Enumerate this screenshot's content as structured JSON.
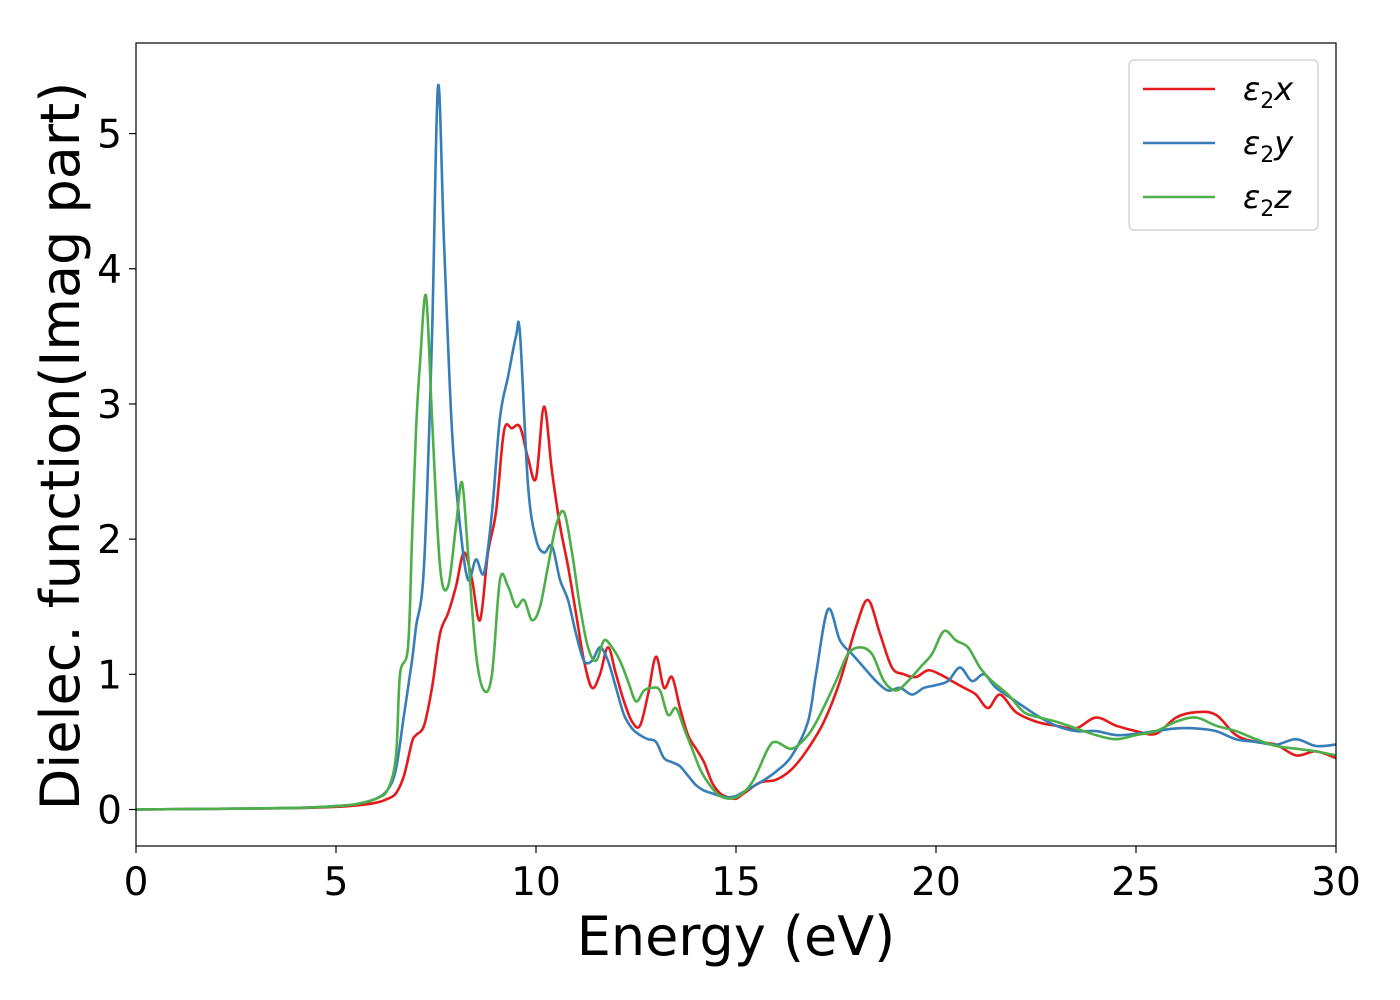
{
  "chart_data": {
    "type": "line",
    "xlabel": "Energy (eV)",
    "ylabel": "Dielec. function(Imag part)",
    "xlim": [
      0,
      30
    ],
    "ylim": [
      -0.27,
      5.67
    ],
    "xticks": [
      0,
      5,
      10,
      15,
      20,
      25,
      30
    ],
    "yticks": [
      0,
      1,
      2,
      3,
      4,
      5
    ],
    "grid": false,
    "legend_position": "top-right",
    "series": [
      {
        "name": "ε2x",
        "legend": {
          "base": "ε",
          "sub": "2",
          "tail": "x"
        },
        "color": "#e41a1c",
        "x": [
          0,
          2,
          4,
          5,
          5.5,
          6,
          6.3,
          6.5,
          6.7,
          6.9,
          7.0,
          7.2,
          7.4,
          7.6,
          7.8,
          8.0,
          8.2,
          8.4,
          8.6,
          8.8,
          9.0,
          9.2,
          9.4,
          9.6,
          9.8,
          10.0,
          10.2,
          10.4,
          10.6,
          10.8,
          11.0,
          11.2,
          11.4,
          11.6,
          11.8,
          12.0,
          12.2,
          12.4,
          12.6,
          12.8,
          13.0,
          13.2,
          13.4,
          13.6,
          13.8,
          14.0,
          14.2,
          14.4,
          14.6,
          14.8,
          15.0,
          15.2,
          15.6,
          16.0,
          16.4,
          16.8,
          17.2,
          17.6,
          18.0,
          18.3,
          18.6,
          18.9,
          19.2,
          19.5,
          19.8,
          20.1,
          20.4,
          20.7,
          21.0,
          21.3,
          21.6,
          22.0,
          22.5,
          23.0,
          23.5,
          24.0,
          24.5,
          25.0,
          25.5,
          26.0,
          26.5,
          27.0,
          27.5,
          28.0,
          28.5,
          29.0,
          29.5,
          30.0
        ],
        "values": [
          0.0,
          0.005,
          0.01,
          0.02,
          0.03,
          0.05,
          0.08,
          0.12,
          0.25,
          0.5,
          0.55,
          0.62,
          0.9,
          1.3,
          1.45,
          1.65,
          1.9,
          1.7,
          1.4,
          1.9,
          2.2,
          2.8,
          2.82,
          2.83,
          2.6,
          2.45,
          2.98,
          2.5,
          2.1,
          1.8,
          1.45,
          1.1,
          0.9,
          1.0,
          1.2,
          1.0,
          0.8,
          0.65,
          0.62,
          0.85,
          1.13,
          0.9,
          0.98,
          0.75,
          0.55,
          0.45,
          0.35,
          0.2,
          0.12,
          0.09,
          0.08,
          0.12,
          0.2,
          0.22,
          0.3,
          0.45,
          0.65,
          0.95,
          1.35,
          1.55,
          1.3,
          1.05,
          1.0,
          0.98,
          1.03,
          1.0,
          0.95,
          0.9,
          0.85,
          0.75,
          0.85,
          0.72,
          0.65,
          0.62,
          0.6,
          0.68,
          0.62,
          0.58,
          0.56,
          0.68,
          0.72,
          0.7,
          0.55,
          0.5,
          0.48,
          0.4,
          0.43,
          0.38
        ]
      },
      {
        "name": "ε2y",
        "legend": {
          "base": "ε",
          "sub": "2",
          "tail": "y"
        },
        "color": "#377eb8",
        "x": [
          0,
          2,
          4,
          5,
          5.5,
          6,
          6.3,
          6.5,
          6.7,
          6.9,
          7.0,
          7.2,
          7.4,
          7.55,
          7.7,
          7.9,
          8.1,
          8.3,
          8.5,
          8.7,
          8.9,
          9.1,
          9.3,
          9.5,
          9.6,
          9.8,
          10.0,
          10.2,
          10.4,
          10.6,
          10.8,
          11.0,
          11.2,
          11.4,
          11.6,
          11.8,
          12.0,
          12.2,
          12.4,
          12.6,
          12.8,
          13.0,
          13.2,
          13.4,
          13.6,
          13.8,
          14.0,
          14.2,
          14.4,
          14.6,
          14.8,
          15.0,
          15.3,
          15.6,
          16.0,
          16.4,
          16.8,
          17.0,
          17.3,
          17.6,
          17.9,
          18.2,
          18.5,
          18.8,
          19.1,
          19.4,
          19.7,
          20.0,
          20.3,
          20.6,
          20.9,
          21.2,
          21.5,
          22.0,
          22.5,
          23.0,
          23.5,
          24.0,
          24.5,
          25.0,
          25.5,
          26.0,
          26.5,
          27.0,
          27.5,
          28.0,
          28.5,
          29.0,
          29.5,
          30.0
        ],
        "values": [
          0.0,
          0.005,
          0.012,
          0.025,
          0.04,
          0.08,
          0.15,
          0.3,
          0.7,
          1.1,
          1.35,
          1.8,
          3.5,
          5.35,
          4.2,
          2.8,
          2.1,
          1.7,
          1.85,
          1.75,
          2.2,
          2.9,
          3.2,
          3.5,
          3.52,
          2.4,
          2.0,
          1.9,
          1.95,
          1.7,
          1.55,
          1.3,
          1.1,
          1.1,
          1.2,
          1.1,
          0.9,
          0.7,
          0.6,
          0.55,
          0.52,
          0.5,
          0.38,
          0.35,
          0.32,
          0.25,
          0.18,
          0.14,
          0.12,
          0.1,
          0.09,
          0.1,
          0.15,
          0.2,
          0.28,
          0.4,
          0.65,
          1.0,
          1.48,
          1.25,
          1.15,
          1.05,
          0.95,
          0.88,
          0.9,
          0.85,
          0.9,
          0.92,
          0.95,
          1.05,
          0.95,
          1.0,
          0.9,
          0.8,
          0.7,
          0.62,
          0.58,
          0.58,
          0.55,
          0.56,
          0.58,
          0.6,
          0.6,
          0.58,
          0.52,
          0.5,
          0.48,
          0.52,
          0.47,
          0.48
        ]
      },
      {
        "name": "ε2z",
        "legend": {
          "base": "ε",
          "sub": "2",
          "tail": "z"
        },
        "color": "#4daf4a",
        "x": [
          0,
          2,
          4,
          5,
          5.5,
          6,
          6.3,
          6.5,
          6.6,
          6.8,
          6.9,
          7.0,
          7.1,
          7.25,
          7.4,
          7.6,
          7.8,
          8.0,
          8.15,
          8.3,
          8.5,
          8.7,
          8.9,
          9.1,
          9.3,
          9.5,
          9.7,
          9.9,
          10.1,
          10.3,
          10.5,
          10.7,
          10.9,
          11.1,
          11.3,
          11.5,
          11.7,
          11.9,
          12.1,
          12.3,
          12.5,
          12.7,
          12.9,
          13.1,
          13.3,
          13.5,
          13.7,
          13.9,
          14.1,
          14.3,
          14.6,
          15.0,
          15.4,
          15.8,
          16.0,
          16.4,
          16.8,
          17.1,
          17.5,
          17.8,
          18.1,
          18.4,
          18.7,
          19.0,
          19.3,
          19.6,
          19.9,
          20.2,
          20.5,
          20.8,
          21.1,
          21.4,
          21.8,
          22.2,
          22.6,
          23.0,
          23.5,
          24.0,
          24.5,
          25.0,
          25.5,
          26.0,
          26.5,
          27.0,
          27.5,
          28.0,
          28.5,
          29.0,
          29.5,
          30.0
        ],
        "values": [
          0.0,
          0.005,
          0.012,
          0.025,
          0.04,
          0.08,
          0.15,
          0.4,
          1.0,
          1.2,
          2.0,
          2.8,
          3.3,
          3.8,
          2.9,
          1.8,
          1.65,
          2.1,
          2.42,
          1.9,
          1.15,
          0.88,
          1.0,
          1.7,
          1.65,
          1.5,
          1.55,
          1.4,
          1.5,
          1.8,
          2.1,
          2.2,
          1.9,
          1.5,
          1.2,
          1.1,
          1.25,
          1.2,
          1.1,
          0.95,
          0.8,
          0.88,
          0.9,
          0.88,
          0.7,
          0.75,
          0.6,
          0.45,
          0.3,
          0.2,
          0.1,
          0.09,
          0.2,
          0.45,
          0.5,
          0.45,
          0.55,
          0.7,
          0.95,
          1.15,
          1.2,
          1.15,
          0.95,
          0.88,
          0.95,
          1.05,
          1.15,
          1.32,
          1.25,
          1.2,
          1.05,
          0.95,
          0.85,
          0.72,
          0.68,
          0.65,
          0.6,
          0.55,
          0.52,
          0.55,
          0.58,
          0.65,
          0.68,
          0.62,
          0.58,
          0.52,
          0.47,
          0.45,
          0.43,
          0.4
        ]
      }
    ]
  }
}
